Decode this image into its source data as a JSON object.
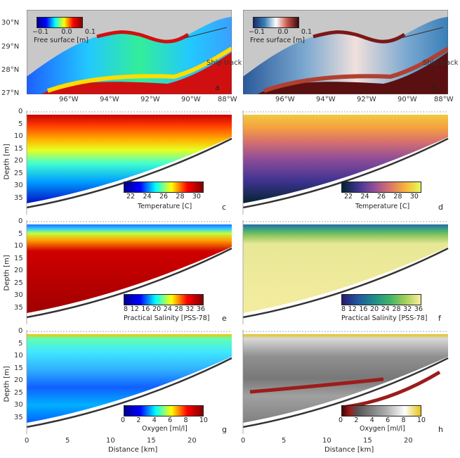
{
  "map_panels": {
    "lat_ticks": [
      "30°N",
      "29°N",
      "28°N",
      "27°N"
    ],
    "lon_ticks": [
      "96°W",
      "94°W",
      "92°W",
      "90°W",
      "88°W"
    ],
    "ship_track_label": "Ship track",
    "left": {
      "cbar_ticks": [
        "−0.1",
        "0.0",
        "0.1"
      ],
      "cbar_label": "Free surface [m]",
      "letter": "a"
    },
    "right": {
      "cbar_ticks": [
        "−0.1",
        "0.0",
        "0.1"
      ],
      "cbar_label": "Free surface [m]",
      "letter": "b"
    }
  },
  "section_panels": {
    "ylabel": "Depth [m]",
    "depth_ticks": [
      "0",
      "5",
      "10",
      "15",
      "20",
      "25",
      "30",
      "35"
    ],
    "xlabel": "Distance [km]",
    "dist_ticks": [
      "0",
      "5",
      "10",
      "15",
      "20"
    ],
    "temperature": {
      "cbar_ticks": [
        "22",
        "24",
        "26",
        "28",
        "30"
      ],
      "cbar_label": "Temperature [C]",
      "letter_left": "c",
      "letter_right": "d"
    },
    "salinity": {
      "cbar_ticks": [
        "8",
        "12",
        "16",
        "20",
        "24",
        "28",
        "32",
        "36"
      ],
      "cbar_label": "Practical Salinity [PSS-78]",
      "letter_left": "e",
      "letter_right": "f"
    },
    "oxygen": {
      "cbar_ticks": [
        "0",
        "2",
        "4",
        "6",
        "8",
        "10"
      ],
      "cbar_label": "Oxygen [ml/l]",
      "letter_left": "g",
      "letter_right": "h"
    }
  },
  "colors": {
    "land": "#c8c8c8",
    "jet": [
      "#00008f",
      "#0000ff",
      "#00ffff",
      "#ffff00",
      "#ff0000",
      "#800000"
    ],
    "thermal": [
      "#04232f",
      "#3d3390",
      "#8e4d98",
      "#d8716e",
      "#f6b23a",
      "#e8fa5b"
    ],
    "haline": [
      "#2a186c",
      "#1f57a0",
      "#1f8a8c",
      "#3cb26a",
      "#9fcf58",
      "#fdef9a"
    ],
    "balance": [
      "#1a2a6c",
      "#3a7fb8",
      "#ffffff",
      "#c7564a",
      "#3c0911"
    ],
    "oxy": [
      "#400505",
      "#9c1c1c",
      "#555555",
      "#aaaaaa",
      "#fefefe",
      "#e6c21a"
    ]
  }
}
